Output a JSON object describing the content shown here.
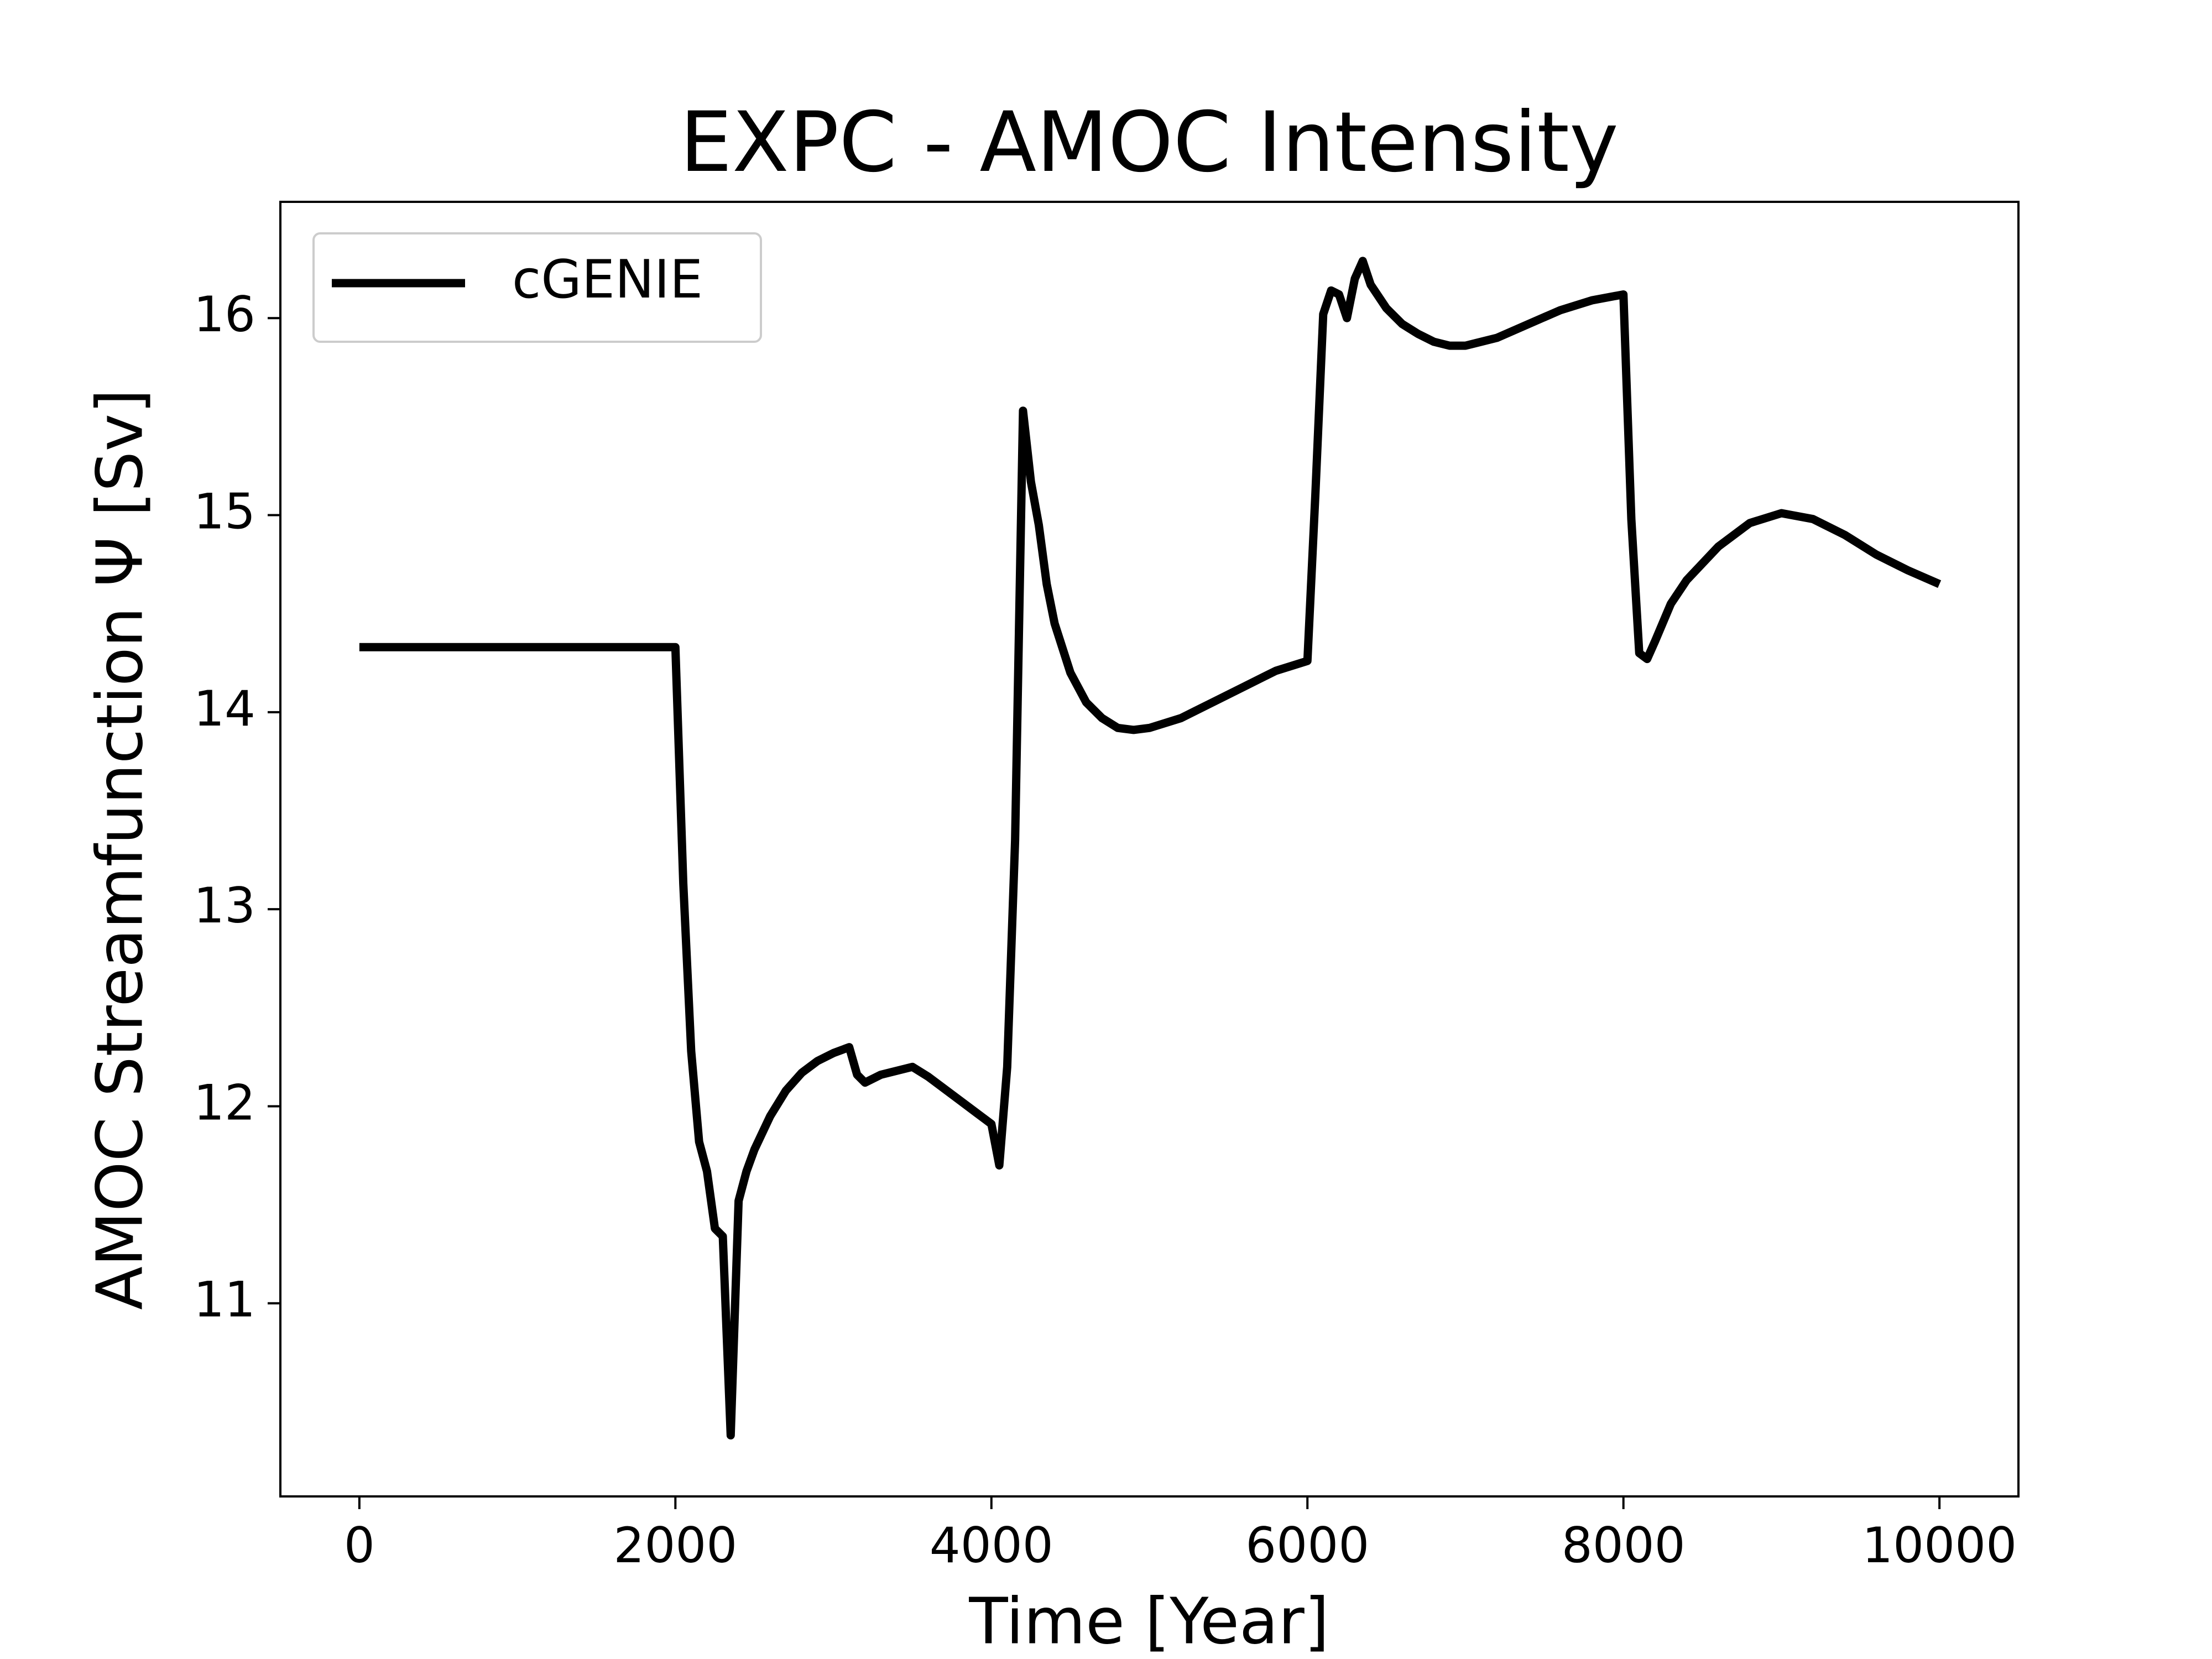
{
  "chart_data": {
    "type": "line",
    "title": "EXPC - AMOC Intensity",
    "x_label": "Time [Year]",
    "y_label": "AMOC Streamfunction Ψ [Sv]",
    "x": [
      0,
      2000,
      2050,
      2100,
      2150,
      2200,
      2250,
      2300,
      2350,
      2400,
      2450,
      2500,
      2600,
      2700,
      2800,
      2900,
      3000,
      3100,
      3150,
      3200,
      3300,
      3400,
      3500,
      3600,
      3700,
      3800,
      3900,
      4000,
      4050,
      4100,
      4150,
      4200,
      4250,
      4300,
      4350,
      4400,
      4500,
      4600,
      4700,
      4800,
      4900,
      5000,
      5200,
      5400,
      5600,
      5800,
      6000,
      6050,
      6100,
      6150,
      6200,
      6250,
      6300,
      6350,
      6400,
      6500,
      6600,
      6700,
      6800,
      6900,
      7000,
      7200,
      7400,
      7600,
      7800,
      8000,
      8050,
      8100,
      8150,
      8200,
      8300,
      8400,
      8600,
      8800,
      9000,
      9200,
      9400,
      9600,
      9800,
      10000
    ],
    "series": [
      {
        "name": "cGENIE",
        "color": "#000000",
        "values": [
          14.33,
          14.33,
          13.13,
          12.28,
          11.82,
          11.67,
          11.38,
          11.34,
          10.33,
          11.52,
          11.67,
          11.78,
          11.95,
          12.08,
          12.17,
          12.23,
          12.27,
          12.3,
          12.16,
          12.12,
          12.16,
          12.18,
          12.2,
          12.15,
          12.09,
          12.03,
          11.97,
          11.91,
          11.7,
          12.2,
          13.35,
          15.53,
          15.17,
          14.95,
          14.65,
          14.45,
          14.2,
          14.05,
          13.97,
          13.92,
          13.91,
          13.92,
          13.97,
          14.05,
          14.13,
          14.21,
          14.26,
          15.1,
          16.02,
          16.14,
          16.12,
          16.0,
          16.2,
          16.29,
          16.17,
          16.05,
          15.97,
          15.92,
          15.88,
          15.86,
          15.86,
          15.9,
          15.97,
          16.04,
          16.09,
          16.12,
          14.98,
          14.3,
          14.27,
          14.36,
          14.55,
          14.67,
          14.84,
          14.96,
          15.01,
          14.98,
          14.9,
          14.8,
          14.72,
          14.65
        ]
      }
    ],
    "xlim": [
      -500,
      10500
    ],
    "ylim": [
      10.02,
      16.59
    ],
    "xticks": [
      0,
      2000,
      4000,
      6000,
      8000,
      10000
    ],
    "yticks": [
      11,
      12,
      13,
      14,
      15,
      16
    ],
    "legend": "upper left",
    "grid": false
  }
}
